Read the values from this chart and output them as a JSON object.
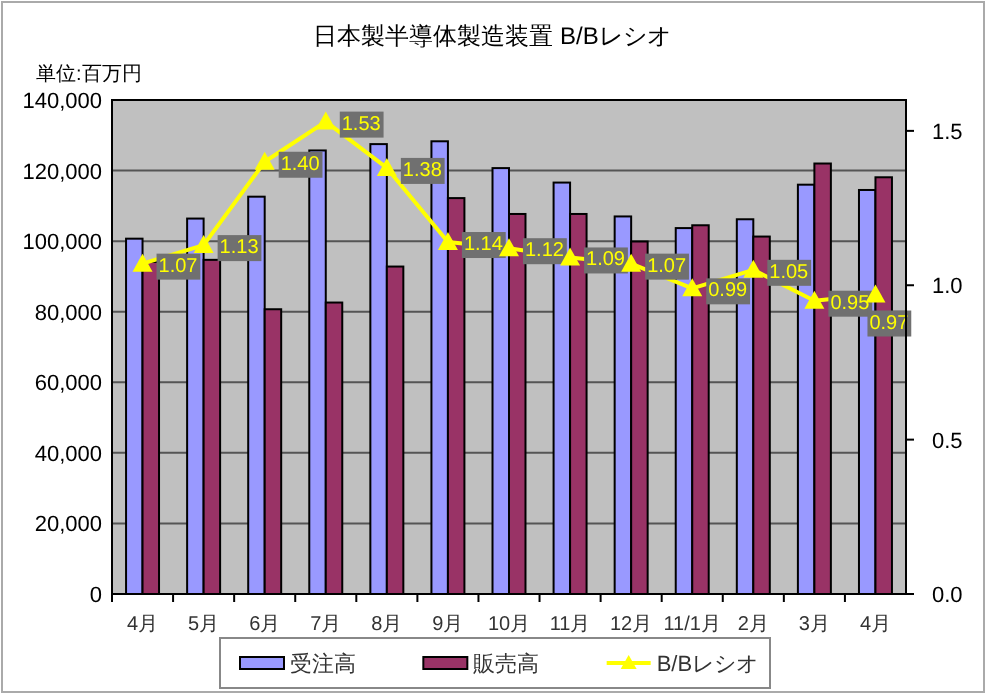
{
  "chart_data": {
    "type": "bar",
    "title": "日本製半導体製造装置 B/Bレシオ",
    "ylabel": "単位:百万円",
    "categories": [
      "4月",
      "5月",
      "6月",
      "7月",
      "8月",
      "9月",
      "10月",
      "11月",
      "12月",
      "11/1月",
      "2月",
      "3月",
      "4月"
    ],
    "series": [
      {
        "name": "受注高",
        "color": "#9999ff",
        "values": [
          100700,
          106400,
          112600,
          125700,
          127500,
          128300,
          120700,
          116600,
          107000,
          103700,
          106200,
          116000,
          114500
        ]
      },
      {
        "name": "販売高",
        "color": "#993366",
        "values": [
          94100,
          94700,
          80700,
          82600,
          92800,
          112200,
          107700,
          107700,
          99900,
          104500,
          101300,
          122000,
          118100
        ]
      },
      {
        "name": "B/Bレシオ",
        "type": "line",
        "axis": "y2",
        "color": "#ffff00",
        "marker": "triangle",
        "values": [
          1.07,
          1.13,
          1.4,
          1.53,
          1.38,
          1.14,
          1.12,
          1.09,
          1.07,
          0.99,
          1.05,
          0.95,
          0.97
        ],
        "value_labels": [
          "1.07",
          "1.13",
          "1.40",
          "1.53",
          "1.38",
          "1.14",
          "1.12",
          "1.09",
          "1.07",
          "0.99",
          "1.05",
          "0.95",
          "0.97"
        ]
      }
    ],
    "ylim": [
      0,
      140000
    ],
    "yticks": [
      {
        "value": 0,
        "label": "0"
      },
      {
        "value": 20000,
        "label": "20,000"
      },
      {
        "value": 40000,
        "label": "40,000"
      },
      {
        "value": 60000,
        "label": "60,000"
      },
      {
        "value": 80000,
        "label": "80,000"
      },
      {
        "value": 100000,
        "label": "100,000"
      },
      {
        "value": 120000,
        "label": "120,000"
      },
      {
        "value": 140000,
        "label": "140,000"
      }
    ],
    "y2lim": [
      0,
      1.6
    ],
    "y2ticks": [
      {
        "value": 0,
        "label": "0.0"
      },
      {
        "value": 0.5,
        "label": "0.5"
      },
      {
        "value": 1,
        "label": "1.0"
      },
      {
        "value": 1.5,
        "label": "1.5"
      }
    ],
    "grid": "y",
    "legend": "bottom"
  }
}
